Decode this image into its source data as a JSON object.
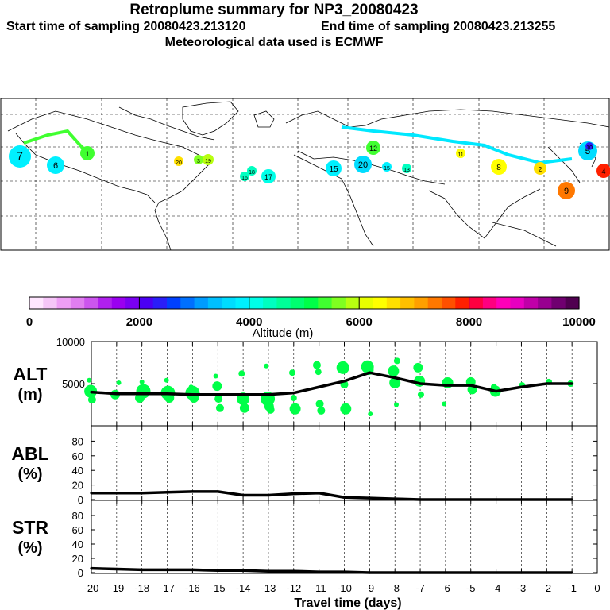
{
  "header": {
    "title": "Retroplume summary for NP3_20080423",
    "start_label": "Start time of sampling 20080423.213120",
    "end_label": "End time of sampling 20080423.213255",
    "met_label": "Meteorological data used is ECMWF"
  },
  "colorbar": {
    "ticks": [
      "0",
      "2000",
      "4000",
      "6000",
      "8000",
      "10000"
    ],
    "label": "Altitude (m)",
    "colors": [
      "#ffe6ff",
      "#f6c6f8",
      "#ee9ff5",
      "#e07ef0",
      "#cc55ee",
      "#b020ee",
      "#9a00f0",
      "#7a00f2",
      "#4b00f4",
      "#2a1ef8",
      "#0040ff",
      "#0070ff",
      "#009cff",
      "#00c0ff",
      "#00dcff",
      "#00f0ff",
      "#00ffe8",
      "#00ffc0",
      "#00ff98",
      "#00ff70",
      "#00ff48",
      "#40ff30",
      "#80ff20",
      "#b8ff10",
      "#e8ff00",
      "#ffff00",
      "#ffe000",
      "#ffc000",
      "#ffa000",
      "#ff7800",
      "#ff5000",
      "#ff2000",
      "#ff0040",
      "#ff0080",
      "#ff00b8",
      "#e800c0",
      "#c000a8",
      "#980090",
      "#700070",
      "#500050"
    ]
  },
  "map": {
    "points": [
      {
        "label": "1",
        "color": "#40ff30"
      },
      {
        "label": "12",
        "color": "#40ff30"
      },
      {
        "label": "20",
        "color": "#00dcff"
      },
      {
        "label": "15",
        "color": "#00f0ff"
      },
      {
        "label": "16",
        "color": "#00ffc0"
      },
      {
        "label": "17",
        "color": "#00ffe8"
      },
      {
        "label": "18",
        "color": "#00ffc0"
      },
      {
        "label": "11",
        "color": "#ffff00"
      },
      {
        "label": "19",
        "color": "#b8ff10"
      },
      {
        "label": "20",
        "color": "#ffe000"
      },
      {
        "label": "15",
        "color": "#00f0ff"
      },
      {
        "label": "5",
        "color": "#00dcff"
      },
      {
        "label": "9",
        "color": "#ff7800"
      },
      {
        "label": "10",
        "color": "#2a1ef8"
      },
      {
        "label": "4",
        "color": "#ff2000"
      },
      {
        "label": "7",
        "color": "#00f0ff"
      },
      {
        "label": "2",
        "color": "#ffe000"
      },
      {
        "label": "6",
        "color": "#00f0ff"
      },
      {
        "label": "8",
        "color": "#ffff00"
      },
      {
        "label": "3",
        "color": "#80ff20"
      },
      {
        "label": "13",
        "color": "#00ffc0"
      }
    ]
  },
  "chart_data": [
    {
      "type": "scatter",
      "name": "ALT",
      "ylabel": "ALT\n(m)",
      "ylabel_lines": [
        "ALT",
        "(m)"
      ],
      "ylim": [
        0,
        10000
      ],
      "xlim": [
        -20,
        0
      ],
      "yticks": [
        "10000",
        "5000"
      ],
      "series": [
        {
          "name": "median altitude (line)",
          "x": [
            -20,
            -19,
            -18,
            -17,
            -16,
            -15,
            -14,
            -13,
            -12,
            -11,
            -10,
            -9,
            -8,
            -7,
            -6,
            -5,
            -4,
            -3,
            -2,
            -1
          ],
          "y": [
            4000,
            3800,
            3800,
            3800,
            3700,
            3700,
            3700,
            3700,
            3900,
            4600,
            5300,
            6300,
            5700,
            5000,
            4800,
            4800,
            4100,
            4600,
            5000,
            5000
          ]
        },
        {
          "name": "altitude clusters (dots)",
          "x": [
            -20,
            -20,
            -20,
            -19,
            -19,
            -18,
            -18,
            -18,
            -17,
            -17,
            -17,
            -16,
            -16,
            -16,
            -15,
            -15,
            -15,
            -15,
            -14,
            -14,
            -14,
            -13,
            -13,
            -13,
            -13,
            -12,
            -12,
            -12,
            -11,
            -11,
            -11,
            -11,
            -10,
            -10,
            -10,
            -9,
            -9,
            -9,
            -8,
            -8,
            -8,
            -8,
            -7,
            -7,
            -7,
            -6,
            -6,
            -5,
            -5,
            -4,
            -4,
            -3,
            -2,
            -1
          ],
          "y": [
            5400,
            4100,
            3100,
            5100,
            3700,
            5200,
            4100,
            3300,
            5400,
            3900,
            3300,
            4600,
            3900,
            3300,
            5900,
            4700,
            3200,
            2100,
            6200,
            3200,
            2100,
            7100,
            3200,
            2300,
            1900,
            6300,
            3300,
            2000,
            7200,
            6400,
            2600,
            1800,
            6900,
            4900,
            2000,
            7000,
            6600,
            1400,
            7700,
            6500,
            5100,
            2500,
            6900,
            5300,
            3700,
            5100,
            2600,
            5200,
            4300,
            4600,
            4100,
            4800,
            5200,
            5000
          ],
          "sizes": [
            3,
            8,
            5,
            3,
            6,
            3,
            9,
            6,
            3,
            9,
            6,
            3,
            9,
            6,
            3,
            6,
            5,
            5,
            4,
            8,
            6,
            3,
            9,
            6,
            5,
            4,
            4,
            7,
            5,
            4,
            5,
            5,
            8,
            5,
            7,
            8,
            6,
            3,
            4,
            7,
            7,
            3,
            6,
            7,
            4,
            7,
            3,
            6,
            6,
            4,
            7,
            4,
            4,
            4
          ]
        }
      ]
    },
    {
      "type": "line",
      "name": "ABL",
      "ylabel_lines": [
        "ABL",
        "(%)"
      ],
      "ylim": [
        0,
        100
      ],
      "xlim": [
        -20,
        0
      ],
      "yticks": [
        "0",
        "20",
        "40",
        "60",
        "80"
      ],
      "series": [
        {
          "name": "ABL fraction",
          "x": [
            -20,
            -19,
            -18,
            -17,
            -16,
            -15,
            -14,
            -13,
            -12,
            -11,
            -10,
            -9,
            -8,
            -7,
            -6,
            -5,
            -4,
            -3,
            -2,
            -1
          ],
          "y": [
            9,
            9,
            9,
            10,
            11,
            11,
            6,
            6,
            8,
            9,
            3,
            2,
            1,
            0,
            0,
            0,
            0,
            0,
            0,
            0
          ]
        }
      ]
    },
    {
      "type": "line",
      "name": "STR",
      "ylabel_lines": [
        "STR",
        "(%)"
      ],
      "ylim": [
        0,
        100
      ],
      "xlim": [
        -20,
        0
      ],
      "yticks": [
        "0",
        "20",
        "40",
        "60",
        "80"
      ],
      "xlabel": "Travel time (days)",
      "xticks": [
        "-20",
        "-19",
        "-18",
        "-17",
        "-16",
        "-15",
        "-14",
        "-13",
        "-12",
        "-11",
        "-10",
        "-9",
        "-8",
        "-7",
        "-6",
        "-5",
        "-4",
        "-3",
        "-2",
        "-1",
        "0"
      ],
      "series": [
        {
          "name": "STR fraction",
          "x": [
            -20,
            -19,
            -18,
            -17,
            -16,
            -15,
            -14,
            -13,
            -12,
            -11,
            -10,
            -9,
            -8,
            -7,
            -6,
            -5,
            -4,
            -3,
            -2,
            -1
          ],
          "y": [
            6,
            5,
            4,
            4,
            4,
            3,
            3,
            2,
            2,
            1,
            1,
            0,
            0,
            0,
            0,
            0,
            0,
            0,
            0,
            0
          ]
        }
      ]
    }
  ]
}
